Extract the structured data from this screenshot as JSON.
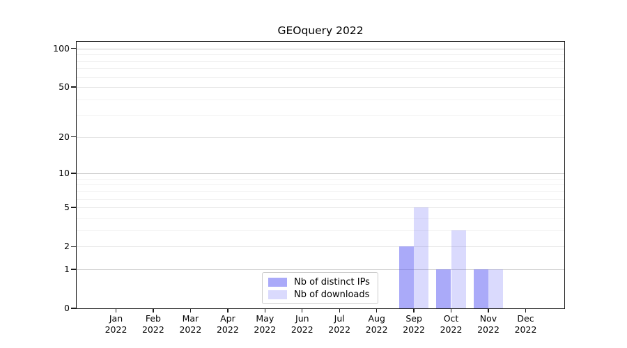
{
  "chart_data": {
    "type": "bar",
    "title": "GEOquery 2022",
    "categories": [
      {
        "month": "Jan",
        "year": "2022"
      },
      {
        "month": "Feb",
        "year": "2022"
      },
      {
        "month": "Mar",
        "year": "2022"
      },
      {
        "month": "Apr",
        "year": "2022"
      },
      {
        "month": "May",
        "year": "2022"
      },
      {
        "month": "Jun",
        "year": "2022"
      },
      {
        "month": "Jul",
        "year": "2022"
      },
      {
        "month": "Aug",
        "year": "2022"
      },
      {
        "month": "Sep",
        "year": "2022"
      },
      {
        "month": "Oct",
        "year": "2022"
      },
      {
        "month": "Nov",
        "year": "2022"
      },
      {
        "month": "Dec",
        "year": "2022"
      }
    ],
    "series": [
      {
        "name": "Nb of distinct IPs",
        "color": "rgba(86,86,244,0.5)",
        "values": [
          0,
          0,
          0,
          0,
          0,
          0,
          0,
          0,
          2,
          1,
          1,
          0
        ]
      },
      {
        "name": "Nb of downloads",
        "color": "rgba(86,86,244,0.22)",
        "values": [
          0,
          0,
          0,
          0,
          0,
          0,
          0,
          0,
          5,
          3,
          1,
          0
        ]
      }
    ],
    "xlabel": "",
    "ylabel": "",
    "yscale": "log1p",
    "ylim": [
      0,
      113
    ],
    "y_ticks": [
      0,
      1,
      2,
      5,
      10,
      20,
      50,
      100
    ],
    "y_major_gridlines": [
      1,
      10,
      100
    ],
    "y_mid_gridlines": [
      2,
      5,
      20,
      50
    ],
    "y_minor_gridlines": [
      3,
      4,
      6,
      7,
      8,
      9,
      30,
      40,
      60,
      70,
      80,
      90
    ],
    "grid": "horizontal",
    "legend_position": "lower center",
    "colors": {
      "distinct_ips_rendered": "#aaaaf9",
      "downloads_rendered": "#dadafc",
      "grid_major": "#c9c9c9",
      "grid_minor": "#f1f1f1",
      "spine": "#1a1a1a"
    }
  }
}
